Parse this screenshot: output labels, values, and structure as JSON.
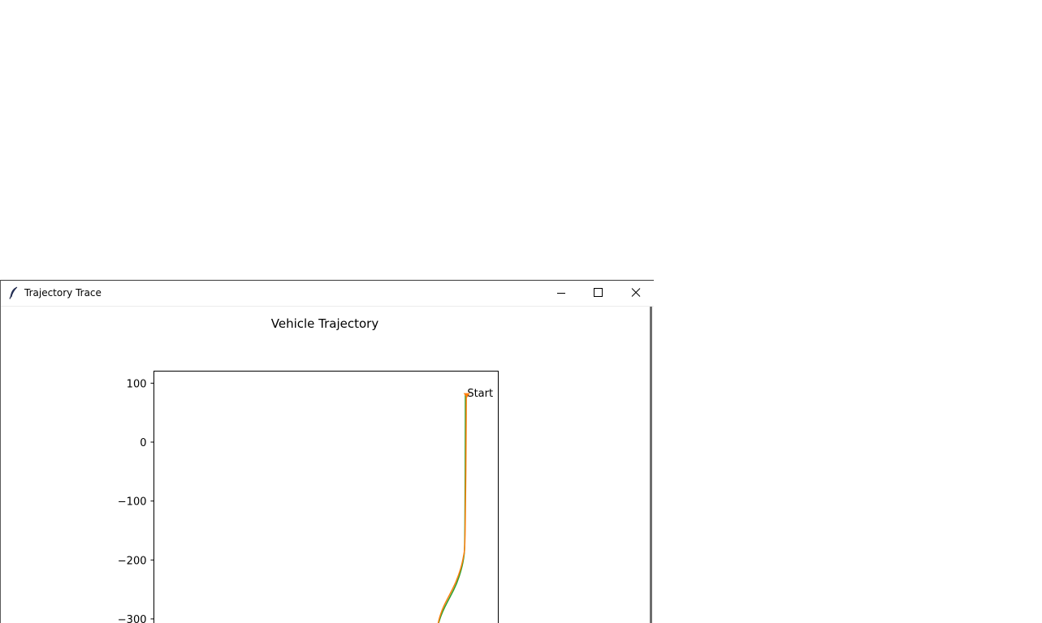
{
  "window": {
    "title": "Trajectory Trace",
    "icon": "feather-icon",
    "buttons": {
      "minimize": "minimize-icon",
      "maximize": "maximize-icon",
      "close": "close-icon"
    }
  },
  "chart_data": {
    "type": "line",
    "title": "Vehicle Trajectory",
    "xlabel": "",
    "ylabel": "",
    "ylim": [
      -310,
      120
    ],
    "xlim": [
      -280,
      15
    ],
    "yticks": [
      {
        "value": 100,
        "label": "100"
      },
      {
        "value": 0,
        "label": "0"
      },
      {
        "value": -100,
        "label": "−100"
      },
      {
        "value": -200,
        "label": "−200"
      },
      {
        "value": -300,
        "label": "−300"
      }
    ],
    "grid": false,
    "colors": {
      "series_a": "#2ca02c",
      "series_b": "#ff7f0e"
    },
    "series": [
      {
        "x": [
          0,
          0,
          -0.3,
          -0.7,
          -1.5,
          -4,
          -9,
          -16,
          -22,
          -26,
          -28,
          -29
        ],
        "y": [
          80,
          0,
          -100,
          -180,
          -195,
          -215,
          -240,
          -262,
          -280,
          -295,
          -305,
          -310
        ]
      },
      {
        "x": [
          1,
          0.8,
          0.2,
          -0.5,
          -1.8,
          -4.5,
          -10,
          -17,
          -23,
          -26.5,
          -28.3,
          -29.2
        ],
        "y": [
          80,
          0,
          -100,
          -180,
          -193,
          -213,
          -238,
          -260,
          -278,
          -293,
          -303,
          -310
        ]
      }
    ],
    "annotations": [
      {
        "text": "Start",
        "x": 2,
        "y": 84
      }
    ],
    "start_marker": {
      "x": 1.5,
      "y": 79
    }
  }
}
